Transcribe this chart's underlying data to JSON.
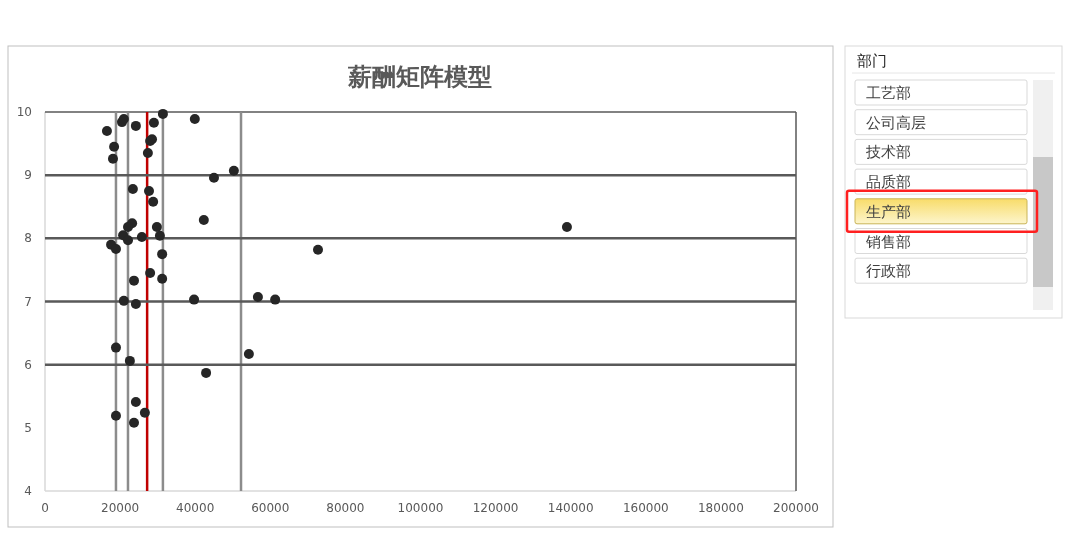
{
  "chart_data": [
    {
      "type": "scatter",
      "title": "薪酬矩阵模型",
      "x": [
        16500,
        20500,
        21000,
        24200,
        31400,
        29000,
        39900,
        18400,
        18100,
        28500,
        28000,
        27400,
        50300,
        45000,
        23400,
        27700,
        28800,
        42300,
        23200,
        22100,
        29800,
        20800,
        25800,
        30600,
        17600,
        18900,
        22100,
        31200,
        139000,
        72700,
        28000,
        23700,
        31200,
        21000,
        24200,
        39700,
        56700,
        61300,
        18900,
        22600,
        54300,
        42900,
        24200,
        18900,
        26600,
        23700
      ],
      "values": [
        9.7,
        9.84,
        9.89,
        9.78,
        9.97,
        9.83,
        9.89,
        9.45,
        9.26,
        9.57,
        9.54,
        9.35,
        9.07,
        8.96,
        8.78,
        8.75,
        8.58,
        8.29,
        8.24,
        8.18,
        8.18,
        8.05,
        8.02,
        8.04,
        7.9,
        7.83,
        7.97,
        7.75,
        8.18,
        7.82,
        7.45,
        7.33,
        7.36,
        7.01,
        6.96,
        7.03,
        7.07,
        7.03,
        6.27,
        6.06,
        6.17,
        5.87,
        5.41,
        5.19,
        5.24,
        5.08
      ],
      "color": "#262626",
      "marker": "circle",
      "xlim": [
        0,
        200000
      ],
      "xticks": [
        0,
        20000,
        40000,
        60000,
        80000,
        100000,
        120000,
        140000,
        160000,
        180000,
        200000
      ],
      "ylim": [
        4,
        10
      ],
      "yticks": [
        4,
        5,
        6,
        7,
        8,
        9,
        10
      ],
      "ref_lines": [
        {
          "axis": "x",
          "value": 18900,
          "color": "#8c8c8c"
        },
        {
          "axis": "x",
          "value": 22100,
          "color": "#8c8c8c"
        },
        {
          "axis": "x",
          "value": 27200,
          "color": "#c00000"
        },
        {
          "axis": "x",
          "value": 31400,
          "color": "#8c8c8c"
        },
        {
          "axis": "x",
          "value": 52200,
          "color": "#8c8c8c"
        },
        {
          "axis": "y",
          "value": 6,
          "color": "#595959"
        },
        {
          "axis": "y",
          "value": 7,
          "color": "#595959"
        },
        {
          "axis": "y",
          "value": 8,
          "color": "#595959"
        },
        {
          "axis": "y",
          "value": 9,
          "color": "#595959"
        }
      ]
    },
    {
      "type": "other",
      "title": "部门",
      "annotations": [
        "工艺部",
        "公司高层",
        "技术部",
        "品质部",
        "生产部",
        "销售部",
        "行政部"
      ]
    }
  ]
}
